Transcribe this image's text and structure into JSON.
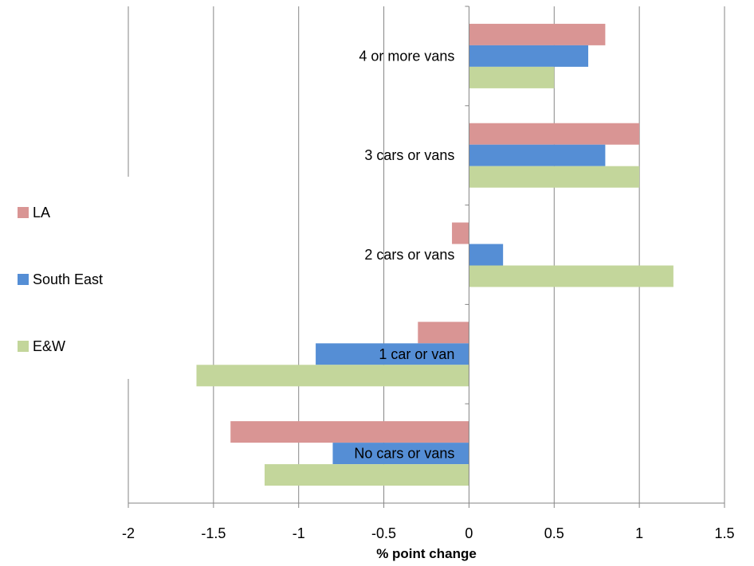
{
  "chart_data": {
    "type": "bar",
    "orientation": "horizontal",
    "categories": [
      "No cars or vans",
      "1 car or van",
      "2 cars or vans",
      "3 cars or vans",
      "4 or more vans"
    ],
    "series": [
      {
        "name": "LA",
        "color": "#d99594",
        "values": [
          -1.4,
          -0.3,
          -0.1,
          1.0,
          0.8
        ]
      },
      {
        "name": "South East",
        "color": "#558ed5",
        "values": [
          -0.8,
          -0.9,
          0.2,
          0.8,
          0.7
        ]
      },
      {
        "name": "E&W",
        "color": "#c3d69b",
        "values": [
          -1.2,
          -1.6,
          1.2,
          1.0,
          0.5
        ]
      }
    ],
    "xlabel": "% point change",
    "xlim": [
      -2,
      1.5
    ],
    "xticks": [
      "-2",
      "-1.5",
      "-1",
      "-0.5",
      "0",
      "0.5",
      "1",
      "1.5"
    ],
    "grid": "vertical",
    "legend": {
      "position": "left",
      "items": [
        "LA",
        "South East",
        "E&W"
      ]
    }
  }
}
